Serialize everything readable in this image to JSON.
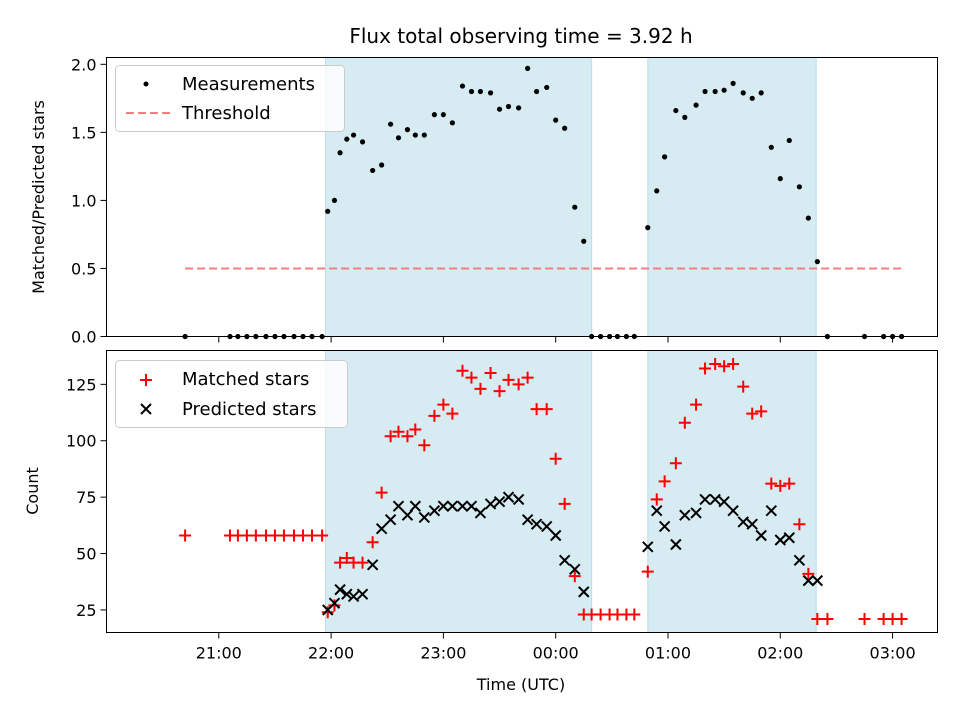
{
  "title": "Flux total observing time = 3.92 h",
  "chart_data": [
    {
      "type": "scatter",
      "panel": "top",
      "ylabel": "Matched/Predicted stars",
      "xlabel": "",
      "ylim": [
        0,
        2.05
      ],
      "yticks": [
        0.0,
        0.5,
        1.0,
        1.5,
        2.0
      ],
      "ytick_labels": [
        "0.0",
        "0.5",
        "1.0",
        "1.5",
        "2.0"
      ],
      "legend": {
        "placement": "top-left",
        "entries": [
          "Measurements",
          "Threshold"
        ]
      },
      "shaded_intervals_hours": [
        [
          21.95,
          24.32
        ],
        [
          24.82,
          26.32
        ]
      ],
      "threshold": {
        "name": "Threshold",
        "value": 0.5,
        "x_range_hours": [
          20.7,
          27.1
        ],
        "color": "#f08080"
      },
      "series": [
        {
          "name": "Measurements",
          "color": "#000000",
          "x_hours": [
            20.7,
            21.1,
            21.17,
            21.25,
            21.33,
            21.42,
            21.5,
            21.58,
            21.67,
            21.75,
            21.83,
            21.92,
            21.97,
            22.03,
            22.08,
            22.14,
            22.2,
            22.28,
            22.37,
            22.45,
            22.53,
            22.6,
            22.68,
            22.75,
            22.83,
            22.92,
            23.0,
            23.08,
            23.17,
            23.25,
            23.33,
            23.42,
            23.5,
            23.58,
            23.67,
            23.75,
            23.83,
            23.92,
            24.0,
            24.08,
            24.17,
            24.25,
            24.32,
            24.4,
            24.48,
            24.55,
            24.63,
            24.7,
            24.82,
            24.9,
            24.97,
            25.07,
            25.15,
            25.25,
            25.33,
            25.42,
            25.5,
            25.58,
            25.67,
            25.75,
            25.83,
            25.92,
            26.0,
            26.08,
            26.17,
            26.25,
            26.33,
            26.42,
            26.75,
            26.92,
            27.0,
            27.08
          ],
          "y": [
            0.0,
            0.0,
            0.0,
            0.0,
            0.0,
            0.0,
            0.0,
            0.0,
            0.0,
            0.0,
            0.0,
            0.0,
            0.92,
            1.0,
            1.35,
            1.45,
            1.48,
            1.43,
            1.22,
            1.26,
            1.56,
            1.46,
            1.52,
            1.48,
            1.48,
            1.63,
            1.63,
            1.57,
            1.84,
            1.8,
            1.8,
            1.79,
            1.67,
            1.69,
            1.68,
            1.97,
            1.8,
            1.83,
            1.59,
            1.53,
            0.95,
            0.7,
            0.0,
            0.0,
            0.0,
            0.0,
            0.0,
            0.0,
            0.8,
            1.07,
            1.32,
            1.66,
            1.61,
            1.7,
            1.8,
            1.8,
            1.81,
            1.86,
            1.79,
            1.75,
            1.79,
            1.39,
            1.16,
            1.44,
            1.1,
            0.87,
            0.55,
            0.0,
            0.0,
            0.0,
            0.0,
            0.0
          ]
        }
      ]
    },
    {
      "type": "scatter",
      "panel": "bottom",
      "ylabel": "Count",
      "xlabel": "Time (UTC)",
      "ylim": [
        15,
        140
      ],
      "yticks": [
        25,
        50,
        75,
        100,
        125
      ],
      "ytick_labels": [
        "25",
        "50",
        "75",
        "100",
        "125"
      ],
      "xlim_hours": [
        20.0,
        27.4
      ],
      "xticks_hours": [
        21,
        22,
        23,
        24,
        25,
        26,
        27
      ],
      "xtick_labels": [
        "21:00",
        "22:00",
        "23:00",
        "00:00",
        "01:00",
        "02:00",
        "03:00"
      ],
      "legend": {
        "placement": "top-left",
        "entries": [
          "Matched stars",
          "Predicted stars"
        ]
      },
      "shaded_intervals_hours": [
        [
          21.95,
          24.32
        ],
        [
          24.82,
          26.32
        ]
      ],
      "series": [
        {
          "name": "Matched stars",
          "marker": "plus",
          "color": "#ff0000",
          "x_hours": [
            20.7,
            21.1,
            21.17,
            21.25,
            21.33,
            21.42,
            21.5,
            21.58,
            21.67,
            21.75,
            21.83,
            21.92,
            21.97,
            22.03,
            22.08,
            22.14,
            22.2,
            22.28,
            22.37,
            22.45,
            22.53,
            22.6,
            22.68,
            22.75,
            22.83,
            22.92,
            23.0,
            23.08,
            23.17,
            23.25,
            23.33,
            23.42,
            23.5,
            23.58,
            23.67,
            23.75,
            23.83,
            23.92,
            24.0,
            24.08,
            24.17,
            24.25,
            24.32,
            24.4,
            24.48,
            24.55,
            24.63,
            24.7,
            24.82,
            24.9,
            24.97,
            25.07,
            25.15,
            25.25,
            25.33,
            25.42,
            25.5,
            25.58,
            25.67,
            25.75,
            25.83,
            25.92,
            26.0,
            26.08,
            26.17,
            26.25,
            26.33,
            26.42,
            26.75,
            26.92,
            27.0,
            27.08
          ],
          "y": [
            58,
            58,
            58,
            58,
            58,
            58,
            58,
            58,
            58,
            58,
            58,
            58,
            24,
            27,
            46,
            48,
            46,
            46,
            55,
            77,
            102,
            104,
            102,
            105,
            98,
            111,
            116,
            112,
            131,
            128,
            123,
            130,
            122,
            127,
            125,
            128,
            114,
            114,
            92,
            72,
            40,
            23,
            23,
            23,
            23,
            23,
            23,
            23,
            42,
            74,
            82,
            90,
            108,
            116,
            132,
            134,
            133,
            134,
            124,
            112,
            113,
            81,
            80,
            81,
            63,
            41,
            21,
            21,
            21,
            21,
            21,
            21
          ]
        },
        {
          "name": "Predicted stars",
          "marker": "x",
          "color": "#000000",
          "x_hours": [
            21.97,
            22.03,
            22.08,
            22.14,
            22.2,
            22.28,
            22.37,
            22.45,
            22.53,
            22.6,
            22.68,
            22.75,
            22.83,
            22.92,
            23.0,
            23.08,
            23.17,
            23.25,
            23.33,
            23.42,
            23.5,
            23.58,
            23.67,
            23.75,
            23.83,
            23.92,
            24.0,
            24.08,
            24.17,
            24.25,
            24.82,
            24.9,
            24.97,
            25.07,
            25.15,
            25.25,
            25.33,
            25.42,
            25.5,
            25.58,
            25.67,
            25.75,
            25.83,
            25.92,
            26.0,
            26.08,
            26.17,
            26.25,
            26.33
          ],
          "y": [
            25,
            28,
            34,
            32,
            31,
            32,
            45,
            61,
            65,
            71,
            67,
            71,
            66,
            69,
            71,
            71,
            71,
            71,
            68,
            72,
            73,
            75,
            74,
            65,
            63,
            62,
            58,
            47,
            43,
            33,
            53,
            69,
            62,
            54,
            67,
            68,
            74,
            74,
            73,
            69,
            64,
            63,
            58,
            69,
            56,
            57,
            47,
            38,
            38
          ]
        }
      ]
    }
  ]
}
